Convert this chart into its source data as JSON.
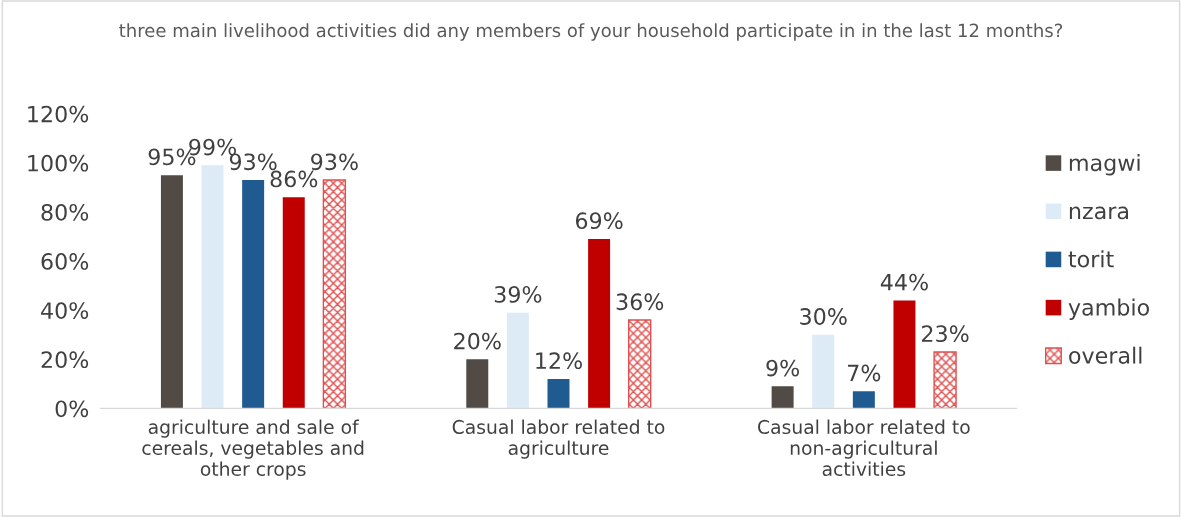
{
  "chart_data": {
    "type": "bar",
    "title": "three main livelihood activities did any members of your household participate in in the last 12 months?",
    "categories": [
      "agriculture and sale of cereals, vegetables and other crops",
      "Casual labor related to agriculture",
      "Casual labor related to non-agricultural activities"
    ],
    "series": [
      {
        "name": "magwi",
        "color": "#524a44",
        "values": [
          95,
          20,
          9
        ],
        "value_labels": [
          "95%",
          "20%",
          "9%"
        ]
      },
      {
        "name": "nzara",
        "color": "#ddebf7",
        "values": [
          99,
          39,
          30
        ],
        "value_labels": [
          "99%",
          "39%",
          "30%"
        ]
      },
      {
        "name": "torit",
        "color": "#1f5a91",
        "values": [
          93,
          12,
          7
        ],
        "value_labels": [
          "93%",
          "12%",
          "7%"
        ]
      },
      {
        "name": "yambio",
        "color": "#c00000",
        "values": [
          86,
          69,
          44
        ],
        "value_labels": [
          "86%",
          "69%",
          "44%"
        ]
      },
      {
        "name": "overall",
        "color": "#e05050",
        "values": [
          93,
          36,
          23
        ],
        "value_labels": [
          "93%",
          "36%",
          "23%"
        ]
      }
    ],
    "ylim": [
      0,
      120
    ],
    "yticks": [
      {
        "value": 0,
        "label": "0%"
      },
      {
        "value": 20,
        "label": "20%"
      },
      {
        "value": 40,
        "label": "40%"
      },
      {
        "value": 60,
        "label": "60%"
      },
      {
        "value": 80,
        "label": "80%"
      },
      {
        "value": 100,
        "label": "100%"
      },
      {
        "value": 120,
        "label": "120%"
      }
    ],
    "legend": "right",
    "grid": false
  }
}
